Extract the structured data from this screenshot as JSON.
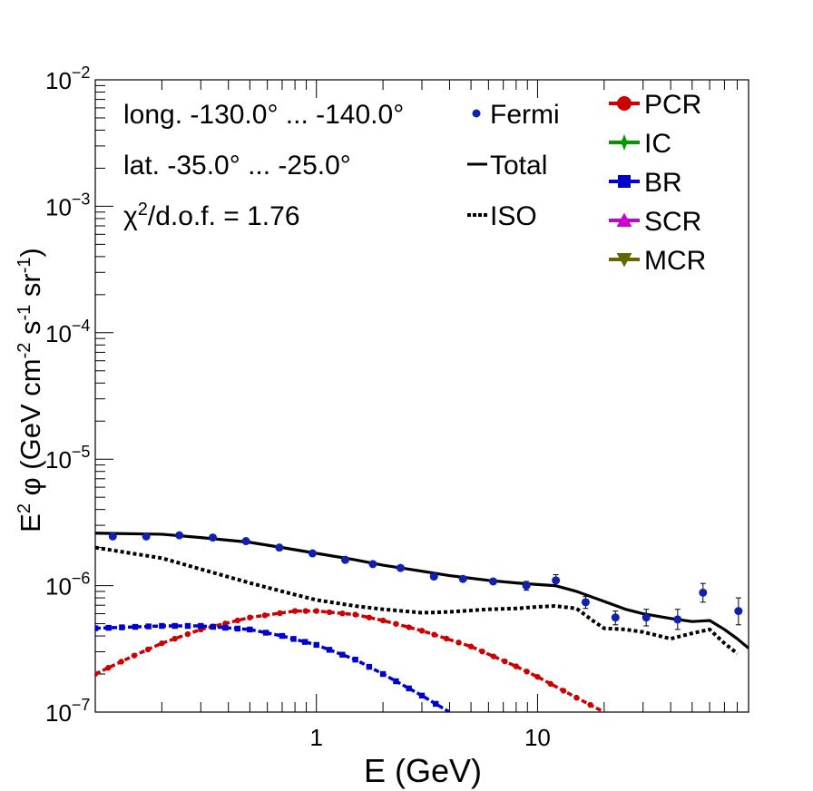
{
  "chart_data": {
    "type": "scatter",
    "title": "",
    "xlabel": "E (GeV)",
    "ylabel_parts": [
      "E",
      "2",
      " φ (GeV cm",
      "-2",
      " s",
      "-1",
      " sr",
      "-1",
      ")"
    ],
    "x_scale": "log",
    "y_scale": "log",
    "xlim": [
      0.1,
      90
    ],
    "ylim": [
      1e-07,
      0.01
    ],
    "x_tick_labels": [
      {
        "value": 1,
        "label": "1"
      },
      {
        "value": 10,
        "label": "10"
      }
    ],
    "y_tick_labels": [
      {
        "value": 1e-07,
        "base": "10",
        "exp": "−7"
      },
      {
        "value": 1e-06,
        "base": "10",
        "exp": "−6"
      },
      {
        "value": 1e-05,
        "base": "10",
        "exp": "−5"
      },
      {
        "value": 0.0001,
        "base": "10",
        "exp": "−4"
      },
      {
        "value": 0.001,
        "base": "10",
        "exp": "−3"
      },
      {
        "value": 0.01,
        "base": "10",
        "exp": "−2"
      }
    ],
    "annotations": {
      "longitude": "long. -130.0° ... -140.0°",
      "latitude": "lat. -35.0° ... -25.0°",
      "chi2_symbol": "χ",
      "chi2_exp": "2",
      "chi2_rest": "/d.o.f. = 1.76"
    },
    "legend_left": [
      {
        "label": "Fermi",
        "kind": "marker",
        "color": "#1020b0"
      },
      {
        "label": "Total",
        "kind": "line",
        "color": "#000000"
      },
      {
        "label": "ISO",
        "kind": "dotted",
        "color": "#000000"
      }
    ],
    "legend_right": [
      {
        "label": "PCR",
        "marker": "circle",
        "color": "#cc0000"
      },
      {
        "label": "IC",
        "marker": "star",
        "color": "#009900"
      },
      {
        "label": "BR",
        "marker": "square",
        "color": "#0000cc"
      },
      {
        "label": "SCR",
        "marker": "triangle-up",
        "color": "#cc00cc"
      },
      {
        "label": "MCR",
        "marker": "triangle-down",
        "color": "#666600"
      }
    ],
    "series": [
      {
        "name": "Fermi",
        "kind": "points",
        "color": "#1020b0",
        "x": [
          0.12,
          0.17,
          0.24,
          0.34,
          0.48,
          0.68,
          0.96,
          1.35,
          1.8,
          2.4,
          3.4,
          4.6,
          6.3,
          8.9,
          12.1,
          16.5,
          22.5,
          31,
          43,
          56,
          81
        ],
        "y": [
          2.45e-06,
          2.45e-06,
          2.5e-06,
          2.4e-06,
          2.25e-06,
          2e-06,
          1.8e-06,
          1.6e-06,
          1.48e-06,
          1.38e-06,
          1.18e-06,
          1.13e-06,
          1.08e-06,
          1e-06,
          1.1e-06,
          7.4e-07,
          5.6e-07,
          5.6e-07,
          5.4e-07,
          8.8e-07,
          6.3e-07
        ],
        "err_lo": [
          0,
          0,
          0,
          0,
          0,
          0,
          0,
          0,
          0,
          0,
          0,
          0,
          0,
          9.2e-07,
          1e-06,
          6.6e-07,
          4.9e-07,
          4.8e-07,
          4.5e-07,
          7.4e-07,
          4.9e-07
        ],
        "err_hi": [
          0,
          0,
          0,
          0,
          0,
          0,
          0,
          0,
          0,
          0,
          0,
          0,
          0,
          1.08e-06,
          1.22e-06,
          8.2e-07,
          6.3e-07,
          6.5e-07,
          6.5e-07,
          1.04e-06,
          8e-07
        ]
      },
      {
        "name": "Total",
        "kind": "line",
        "color": "#000000",
        "x": [
          0.1,
          0.2,
          0.3,
          0.5,
          0.7,
          1.0,
          1.5,
          2.0,
          3.0,
          4.0,
          6.0,
          8.0,
          10,
          12,
          15,
          20,
          25,
          30,
          40,
          50,
          60,
          70,
          80,
          90
        ],
        "y": [
          2.6e-06,
          2.55e-06,
          2.4e-06,
          2.2e-06,
          2e-06,
          1.8e-06,
          1.6e-06,
          1.45e-06,
          1.3e-06,
          1.2e-06,
          1.1e-06,
          1.05e-06,
          1.02e-06,
          1e-06,
          9e-07,
          7.5e-07,
          6.5e-07,
          6e-07,
          5.5e-07,
          5.2e-07,
          5.3e-07,
          4.5e-07,
          3.8e-07,
          3.2e-07
        ]
      },
      {
        "name": "ISO",
        "kind": "dotted",
        "color": "#000000",
        "x": [
          0.1,
          0.2,
          0.3,
          0.5,
          0.7,
          1.0,
          1.5,
          2.0,
          3.0,
          4.0,
          6.0,
          8.0,
          10,
          12,
          15,
          18,
          20,
          25,
          30,
          40,
          50,
          60,
          70,
          80
        ],
        "y": [
          2e-06,
          1.65e-06,
          1.35e-06,
          1.05e-06,
          9e-07,
          7.7e-07,
          6.9e-07,
          6.5e-07,
          6.1e-07,
          6.2e-07,
          6.5e-07,
          6.6e-07,
          6.8e-07,
          6.9e-07,
          6.6e-07,
          5.2e-07,
          4.6e-07,
          4.5e-07,
          4.3e-07,
          3.8e-07,
          4.2e-07,
          4.5e-07,
          3.5e-07,
          2.9e-07
        ]
      },
      {
        "name": "PCR",
        "kind": "marked-line",
        "color": "#cc0000",
        "x": [
          0.1,
          0.15,
          0.2,
          0.3,
          0.5,
          0.8,
          1.0,
          1.5,
          2.0,
          3.0,
          5.0,
          8.0,
          10,
          15,
          20
        ],
        "y": [
          2e-07,
          2.8e-07,
          3.5e-07,
          4.5e-07,
          5.6e-07,
          6.3e-07,
          6.3e-07,
          5.9e-07,
          5.3e-07,
          4.4e-07,
          3.3e-07,
          2.3e-07,
          1.9e-07,
          1.3e-07,
          1e-07
        ]
      },
      {
        "name": "BR",
        "kind": "marked-line",
        "color": "#0000cc",
        "x": [
          0.1,
          0.2,
          0.3,
          0.5,
          0.7,
          1.0,
          1.5,
          2.0,
          3.0,
          4.0
        ],
        "y": [
          4.6e-07,
          4.8e-07,
          4.8e-07,
          4.5e-07,
          4e-07,
          3.4e-07,
          2.6e-07,
          2e-07,
          1.35e-07,
          1e-07
        ]
      }
    ]
  }
}
